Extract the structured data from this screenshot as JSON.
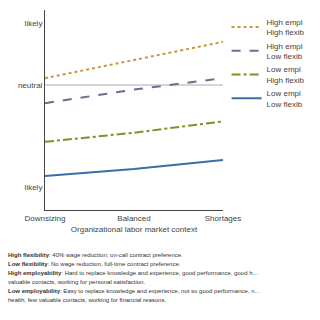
{
  "chart_data": {
    "type": "line",
    "categories": [
      "Downsizing",
      "Balanced",
      "Shortages"
    ],
    "xlabel": "Organizational labor market context",
    "ylim": [
      0.0,
      0.88
    ],
    "yticks": [
      {
        "value": 0.1,
        "label": "likely"
      },
      {
        "value": 0.55,
        "label": "neutral"
      },
      {
        "value": 0.82,
        "label": "likely"
      }
    ],
    "reference_line": 0.55,
    "grid": false,
    "legend": "right",
    "series": [
      {
        "name": "High empl\nHigh flexib",
        "color": "#c8963e",
        "line_style": "dotted",
        "values": [
          0.58,
          0.66,
          0.74
        ]
      },
      {
        "name": "High empl\nLow flexib",
        "color": "#6d6d8f",
        "line_style": "dashed",
        "values": [
          0.47,
          0.53,
          0.58
        ]
      },
      {
        "name": "Low empl\nHigh flexib",
        "color": "#8b8b2a",
        "line_style": "dashdot",
        "values": [
          0.3,
          0.34,
          0.39
        ]
      },
      {
        "name": "Low empl\nLow flexib",
        "color": "#3a6ea5",
        "line_style": "solid",
        "values": [
          0.15,
          0.18,
          0.22
        ]
      }
    ],
    "annotations": [
      "High flexibility: 40% wage reduction; on-call contract preference.",
      "Low flexibility: No wage reduction, full-time contract preference.",
      "High employability: Hard to replace knowledge and experience, good performance, good h…",
      "valuable contacts, working for personal satisfaction.",
      "Low employability: Easy to replace knowledge and experience, not so good performance, n…",
      "health, few valuable contacts, working for financial reasons."
    ]
  }
}
